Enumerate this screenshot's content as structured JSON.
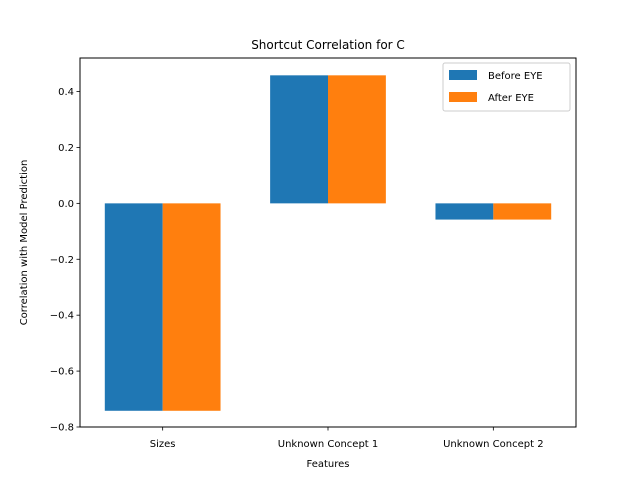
{
  "chart_data": {
    "type": "bar",
    "title": "Shortcut Correlation for C",
    "xlabel": "Features",
    "ylabel": "Correlation with Model Prediction",
    "categories": [
      "Sizes",
      "Unknown Concept 1",
      "Unknown Concept 2"
    ],
    "series": [
      {
        "name": "Before EYE",
        "values": [
          -0.742,
          0.458,
          -0.058
        ],
        "color": "#1f77b4"
      },
      {
        "name": "After EYE",
        "values": [
          -0.742,
          0.458,
          -0.058
        ],
        "color": "#ff7f0e"
      }
    ],
    "ylim": [
      -0.8,
      0.52
    ],
    "yticks": [
      -0.8,
      -0.6,
      -0.4,
      -0.2,
      0.0,
      0.2,
      0.4
    ],
    "ytick_labels": [
      "−0.8",
      "−0.6",
      "−0.4",
      "−0.2",
      "0.0",
      "0.2",
      "0.4"
    ],
    "grid": false,
    "legend_position": "upper right"
  }
}
